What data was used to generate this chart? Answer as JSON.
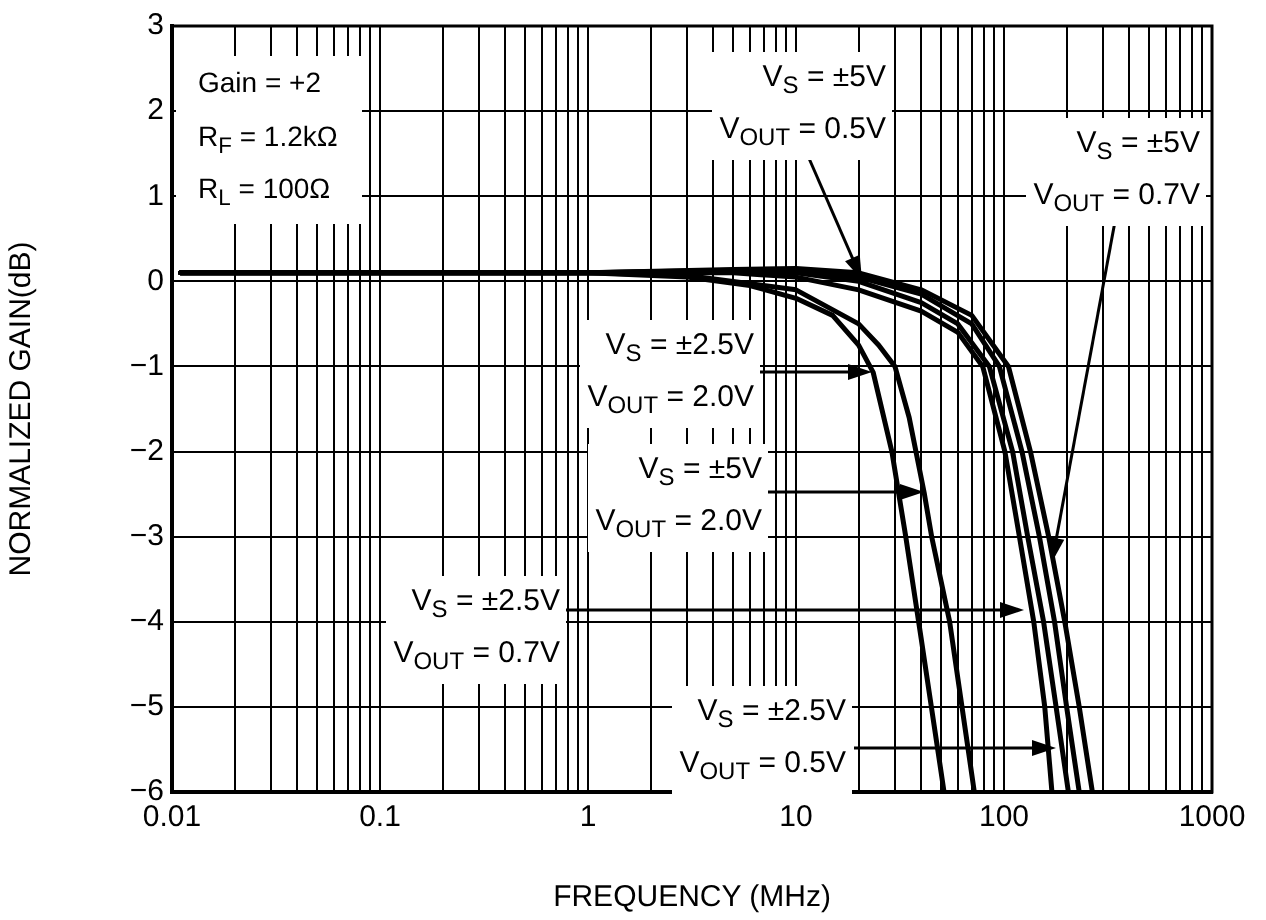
{
  "chart_data": {
    "type": "line",
    "xlabel": "FREQUENCY (MHz)",
    "ylabel": "NORMALIZED GAIN(dB)",
    "log": "x",
    "grid": true,
    "legend": false,
    "marker": "none",
    "line_style": "solid",
    "xlim": [
      0.01,
      1000
    ],
    "ylim": [
      -6,
      3
    ],
    "xticks": [
      0.01,
      {
        "value": 0.02,
        "label": null
      },
      {
        "value": 0.03,
        "label": null
      },
      {
        "value": 0.04,
        "label": null
      },
      {
        "value": 0.05,
        "label": null
      },
      {
        "value": 0.06,
        "label": null
      },
      {
        "value": 0.07,
        "label": null
      },
      {
        "value": 0.08,
        "label": null
      },
      {
        "value": 0.09,
        "label": null
      },
      0.1,
      {
        "value": 0.2,
        "label": null
      },
      {
        "value": 0.3,
        "label": null
      },
      {
        "value": 0.4,
        "label": null
      },
      {
        "value": 0.5,
        "label": null
      },
      {
        "value": 0.6,
        "label": null
      },
      {
        "value": 0.7,
        "label": null
      },
      {
        "value": 0.8,
        "label": null
      },
      {
        "value": 0.9,
        "label": null
      },
      1,
      {
        "value": 2,
        "label": null
      },
      {
        "value": 3,
        "label": null
      },
      {
        "value": 4,
        "label": null
      },
      {
        "value": 5,
        "label": null
      },
      {
        "value": 6,
        "label": null
      },
      {
        "value": 7,
        "label": null
      },
      {
        "value": 8,
        "label": null
      },
      {
        "value": 9,
        "label": null
      },
      10,
      {
        "value": 20,
        "label": null
      },
      {
        "value": 30,
        "label": null
      },
      {
        "value": 40,
        "label": null
      },
      {
        "value": 50,
        "label": null
      },
      {
        "value": 60,
        "label": null
      },
      {
        "value": 70,
        "label": null
      },
      {
        "value": 80,
        "label": null
      },
      {
        "value": 90,
        "label": null
      },
      100,
      {
        "value": 200,
        "label": null
      },
      {
        "value": 300,
        "label": null
      },
      {
        "value": 400,
        "label": null
      },
      {
        "value": 500,
        "label": null
      },
      {
        "value": 600,
        "label": null
      },
      {
        "value": 700,
        "label": null
      },
      {
        "value": 800,
        "label": null
      },
      {
        "value": 900,
        "label": null
      },
      1000
    ],
    "yticks": [
      {
        "value": -6,
        "label": "−6"
      },
      {
        "value": -5,
        "label": "−5"
      },
      {
        "value": -4,
        "label": "−4"
      },
      {
        "value": -3,
        "label": "−3"
      },
      {
        "value": -2,
        "label": "−2"
      },
      {
        "value": -1,
        "label": "−1"
      },
      0,
      1,
      2,
      3
    ],
    "series": [
      {
        "color": "#000000",
        "x": [
          0.011,
          1,
          3,
          6,
          10,
          15,
          20,
          23.5,
          28.9,
          33.7,
          40,
          51.5
        ],
        "values": [
          0.1,
          0.1,
          0.05,
          -0.05,
          -0.2,
          -0.4,
          -0.75,
          -1.07,
          -2,
          -3,
          -4.2,
          -6
        ]
      },
      {
        "color": "#000000",
        "x": [
          0.011,
          1,
          3,
          10,
          20,
          25,
          29.9,
          35,
          41.3,
          44.9,
          54.8,
          72
        ],
        "values": [
          0.1,
          0.1,
          0.07,
          -0.1,
          -0.5,
          -0.75,
          -1,
          -1.6,
          -2.48,
          -3,
          -4,
          -6
        ]
      },
      {
        "color": "#000000",
        "x": [
          0.011,
          1,
          5,
          10,
          20,
          40,
          60,
          79,
          101,
          118.6,
          139,
          157,
          170
        ],
        "values": [
          0.1,
          0.1,
          0.1,
          0.05,
          -0.1,
          -0.35,
          -0.6,
          -1,
          -2,
          -3,
          -4,
          -5,
          -6
        ]
      },
      {
        "color": "#000000",
        "x": [
          0.011,
          1,
          5,
          10,
          20,
          40,
          60,
          85,
          110,
          130,
          155,
          178,
          204
        ],
        "values": [
          0.1,
          0.1,
          0.12,
          0.1,
          0,
          -0.25,
          -0.5,
          -1,
          -2,
          -3,
          -4,
          -5,
          -6
        ]
      },
      {
        "color": "#000000",
        "x": [
          0.011,
          1,
          5,
          10,
          20,
          40,
          70,
          95,
          122,
          148,
          175,
          200,
          230
        ],
        "values": [
          0.1,
          0.1,
          0.13,
          0.14,
          0.05,
          -0.15,
          -0.5,
          -1,
          -2,
          -3,
          -4,
          -5,
          -6
        ]
      },
      {
        "color": "#000000",
        "x": [
          0.011,
          1,
          5,
          10,
          20,
          40,
          70,
          105,
          134,
          164,
          196,
          230,
          266
        ],
        "values": [
          0.1,
          0.1,
          0.14,
          0.15,
          0.1,
          -0.1,
          -0.4,
          -1,
          -2,
          -3,
          -4,
          -5,
          -6
        ]
      }
    ],
    "annotations": [
      "Gain = +2",
      "R$_{F}$ = 1.2kΩ",
      "R$_{L}$ = 100Ω",
      "V$_{S}$ = ±5V\nV$_{OUT}$ = 0.5V",
      "V$_{S}$ = ±5V\nV$_{OUT}$ = 0.7V",
      "V$_{S}$ = ±2.5V\nV$_{OUT}$ = 2.0V",
      "V$_{S}$ = ±5V\nV$_{OUT}$ = 2.0V",
      "V$_{S}$ = ±2.5V\nV$_{OUT}$ = 0.7V",
      "V$_{S}$ = ±2.5V\nV$_{OUT}$ = 0.5V"
    ]
  }
}
